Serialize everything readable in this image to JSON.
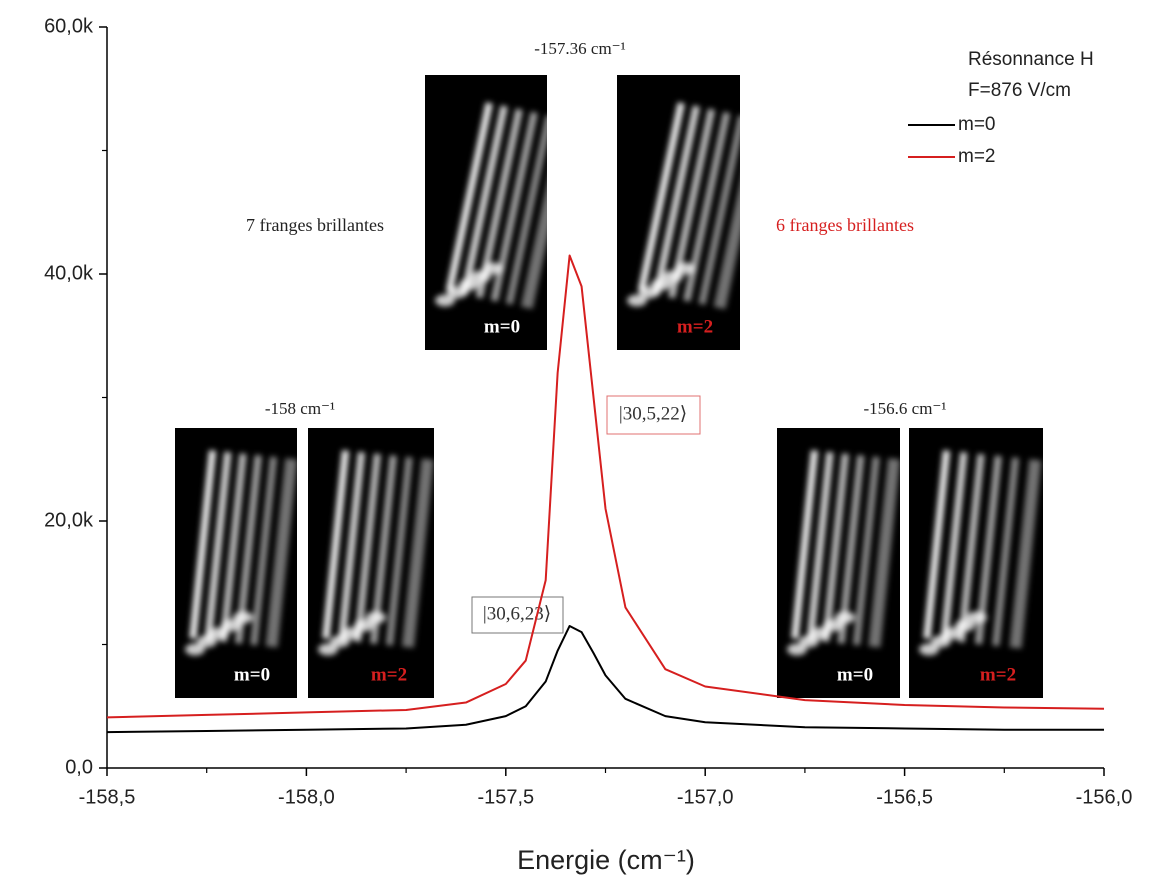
{
  "chart_data": {
    "type": "line",
    "xlabel": "Energie (cm⁻¹)",
    "x": [
      -158.5,
      -158.25,
      -158.0,
      -157.75,
      -157.6,
      -157.5,
      -157.45,
      -157.4,
      -157.37,
      -157.34,
      -157.31,
      -157.28,
      -157.25,
      -157.2,
      -157.1,
      -157.0,
      -156.75,
      -156.5,
      -156.25,
      -156.0
    ],
    "series": [
      {
        "name": "m=0",
        "color": "#000000",
        "values": [
          2900,
          3000,
          3100,
          3200,
          3500,
          4200,
          5000,
          7000,
          9500,
          11500,
          11000,
          9300,
          7500,
          5600,
          4200,
          3700,
          3300,
          3200,
          3100,
          3100
        ]
      },
      {
        "name": "m=2",
        "color": "#d61f1f",
        "values": [
          4100,
          4300,
          4500,
          4700,
          5300,
          6800,
          8700,
          15200,
          32000,
          41500,
          39000,
          30000,
          21000,
          13000,
          8000,
          6600,
          5500,
          5100,
          4900,
          4800
        ]
      }
    ],
    "xlim": [
      -158.5,
      -156.0
    ],
    "ylim": [
      0,
      60000
    ],
    "xticks": [
      {
        "value": -158.5,
        "label": "-158,5"
      },
      {
        "value": -158.0,
        "label": "-158,0"
      },
      {
        "value": -157.5,
        "label": "-157,5"
      },
      {
        "value": -157.0,
        "label": "-157,0"
      },
      {
        "value": -156.5,
        "label": "-156,5"
      },
      {
        "value": -156.0,
        "label": "-156,0"
      }
    ],
    "yticks": [
      {
        "value": 0,
        "label": "0,0"
      },
      {
        "value": 20000,
        "label": "20,0k"
      },
      {
        "value": 40000,
        "label": "40,0k"
      },
      {
        "value": 60000,
        "label": "60,0k"
      }
    ],
    "xminor_ticks": [
      -158.25,
      -157.75,
      -157.25,
      -156.75,
      -156.25
    ],
    "yminor_ticks": [
      10000,
      30000,
      50000
    ],
    "legend": {
      "title": [
        "Résonnance H",
        "F=876 V/cm"
      ],
      "position": "upper right"
    },
    "insets": [
      {
        "energy": "-157.36 cm⁻¹",
        "panels": [
          "m=0",
          "m=2"
        ]
      },
      {
        "energy": "-158 cm⁻¹",
        "panels": [
          "m=0",
          "m=2"
        ]
      },
      {
        "energy": "-156.6 cm⁻¹",
        "panels": [
          "m=0",
          "m=2"
        ]
      }
    ],
    "annotations": [
      "7 franges brillantes",
      "6 franges brillantes"
    ],
    "states": [
      "|30,5,22⟩",
      "|30,6,23⟩"
    ]
  }
}
